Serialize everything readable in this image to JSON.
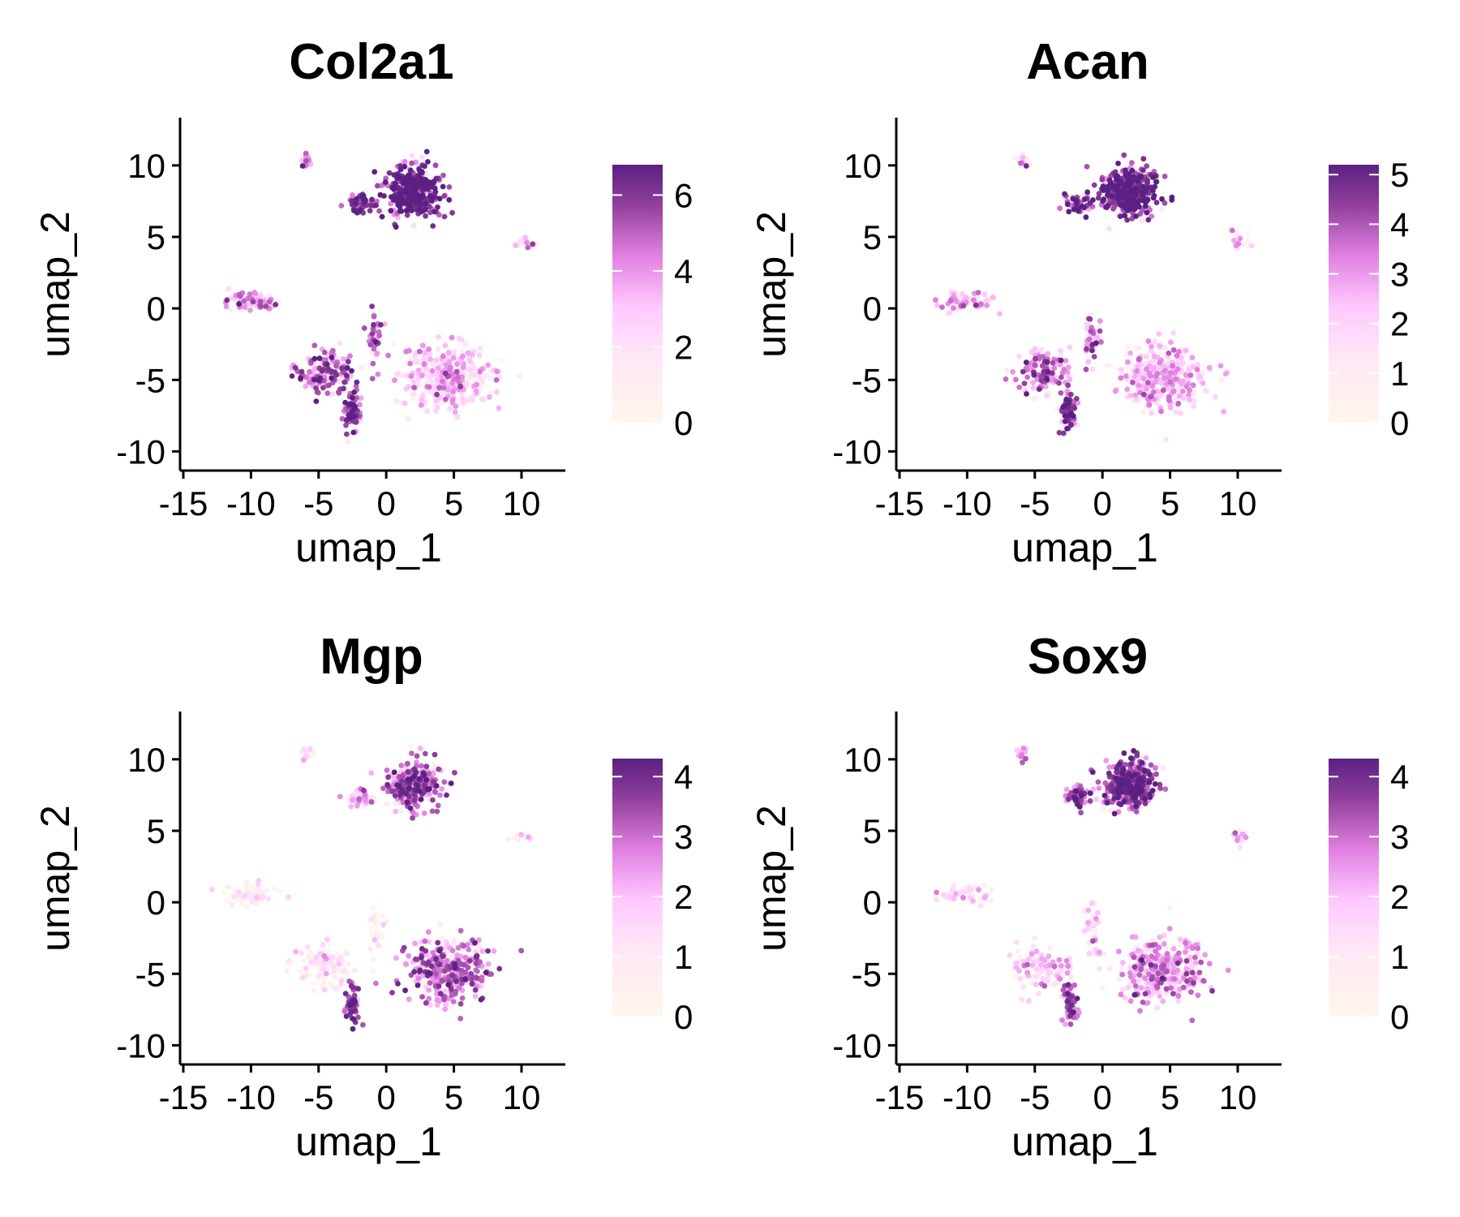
{
  "chart_data": [
    {
      "type": "scatter",
      "title": "Col2a1",
      "xlabel": "umap_1",
      "ylabel": "umap_2",
      "xlim": [
        -15,
        13
      ],
      "ylim": [
        -11,
        13
      ],
      "xticks": [
        "-15",
        "-10",
        "-5",
        "0",
        "5",
        "10"
      ],
      "yticks": [
        "-10",
        "-5",
        "0",
        "5",
        "10"
      ],
      "colorbar": {
        "min": 0,
        "max": 6.8,
        "ticks": [
          "0",
          "2",
          "4",
          "6"
        ],
        "tick_values": [
          0,
          2,
          4,
          6
        ]
      },
      "clusters": [
        {
          "cx": 2.0,
          "cy": 8.2,
          "sx": 1.6,
          "sy": 1.4,
          "n": 420,
          "level": 0.92
        },
        {
          "cx": -1.8,
          "cy": 7.3,
          "sx": 0.8,
          "sy": 0.6,
          "n": 60,
          "level": 0.85
        },
        {
          "cx": -5.9,
          "cy": 10.4,
          "sx": 0.35,
          "sy": 0.45,
          "n": 18,
          "level": 0.45
        },
        {
          "cx": 10.2,
          "cy": 4.6,
          "sx": 0.8,
          "sy": 0.5,
          "n": 14,
          "level": 0.35
        },
        {
          "cx": -10.0,
          "cy": 0.5,
          "sx": 1.6,
          "sy": 0.6,
          "n": 70,
          "level": 0.55
        },
        {
          "cx": -4.5,
          "cy": -4.5,
          "sx": 1.8,
          "sy": 1.3,
          "n": 140,
          "level": 0.7
        },
        {
          "cx": -2.5,
          "cy": -7.2,
          "sx": 0.5,
          "sy": 1.2,
          "n": 80,
          "level": 0.8
        },
        {
          "cx": 4.5,
          "cy": -4.8,
          "sx": 2.6,
          "sy": 1.9,
          "n": 360,
          "level": 0.4
        },
        {
          "cx": -0.8,
          "cy": -2.0,
          "sx": 0.5,
          "sy": 1.6,
          "n": 40,
          "level": 0.7
        }
      ]
    },
    {
      "type": "scatter",
      "title": "Acan",
      "xlabel": "umap_1",
      "ylabel": "umap_2",
      "xlim": [
        -15,
        13
      ],
      "ylim": [
        -11,
        13
      ],
      "xticks": [
        "-15",
        "-10",
        "-5",
        "0",
        "5",
        "10"
      ],
      "yticks": [
        "-10",
        "-5",
        "0",
        "5",
        "10"
      ],
      "colorbar": {
        "min": 0,
        "max": 5.2,
        "ticks": [
          "0",
          "1",
          "2",
          "3",
          "4",
          "5"
        ],
        "tick_values": [
          0,
          1,
          2,
          3,
          4,
          5
        ]
      },
      "clusters": [
        {
          "cx": 2.0,
          "cy": 8.2,
          "sx": 1.6,
          "sy": 1.4,
          "n": 420,
          "level": 0.9
        },
        {
          "cx": -1.8,
          "cy": 7.3,
          "sx": 0.8,
          "sy": 0.6,
          "n": 60,
          "level": 0.85
        },
        {
          "cx": -5.9,
          "cy": 10.4,
          "sx": 0.35,
          "sy": 0.45,
          "n": 18,
          "level": 0.4
        },
        {
          "cx": 10.2,
          "cy": 4.6,
          "sx": 0.8,
          "sy": 0.5,
          "n": 14,
          "level": 0.35
        },
        {
          "cx": -10.0,
          "cy": 0.5,
          "sx": 1.6,
          "sy": 0.6,
          "n": 70,
          "level": 0.5
        },
        {
          "cx": -4.5,
          "cy": -4.5,
          "sx": 1.8,
          "sy": 1.3,
          "n": 140,
          "level": 0.65
        },
        {
          "cx": -2.5,
          "cy": -7.2,
          "sx": 0.5,
          "sy": 1.2,
          "n": 80,
          "level": 0.8
        },
        {
          "cx": 4.5,
          "cy": -4.8,
          "sx": 2.6,
          "sy": 1.9,
          "n": 360,
          "level": 0.45
        },
        {
          "cx": -0.8,
          "cy": -2.0,
          "sx": 0.5,
          "sy": 1.6,
          "n": 40,
          "level": 0.6
        }
      ]
    },
    {
      "type": "scatter",
      "title": "Mgp",
      "xlabel": "umap_1",
      "ylabel": "umap_2",
      "xlim": [
        -15,
        13
      ],
      "ylim": [
        -11,
        13
      ],
      "xticks": [
        "-15",
        "-10",
        "-5",
        "0",
        "5",
        "10"
      ],
      "yticks": [
        "-10",
        "-5",
        "0",
        "5",
        "10"
      ],
      "colorbar": {
        "min": 0,
        "max": 4.3,
        "ticks": [
          "0",
          "1",
          "2",
          "3",
          "4"
        ],
        "tick_values": [
          0,
          1,
          2,
          3,
          4
        ]
      },
      "clusters": [
        {
          "cx": 2.0,
          "cy": 8.2,
          "sx": 1.6,
          "sy": 1.4,
          "n": 300,
          "level": 0.7
        },
        {
          "cx": -1.8,
          "cy": 7.3,
          "sx": 0.8,
          "sy": 0.6,
          "n": 40,
          "level": 0.55
        },
        {
          "cx": -5.9,
          "cy": 10.4,
          "sx": 0.35,
          "sy": 0.45,
          "n": 14,
          "level": 0.3
        },
        {
          "cx": 10.2,
          "cy": 4.6,
          "sx": 0.8,
          "sy": 0.5,
          "n": 10,
          "level": 0.1
        },
        {
          "cx": -10.0,
          "cy": 0.5,
          "sx": 1.6,
          "sy": 0.6,
          "n": 60,
          "level": 0.15
        },
        {
          "cx": -4.5,
          "cy": -4.5,
          "sx": 1.8,
          "sy": 1.3,
          "n": 110,
          "level": 0.2
        },
        {
          "cx": -2.5,
          "cy": -7.2,
          "sx": 0.5,
          "sy": 1.2,
          "n": 60,
          "level": 0.75
        },
        {
          "cx": 4.5,
          "cy": -4.8,
          "sx": 2.6,
          "sy": 1.9,
          "n": 340,
          "level": 0.65
        },
        {
          "cx": -0.8,
          "cy": -2.0,
          "sx": 0.5,
          "sy": 1.6,
          "n": 30,
          "level": 0.15
        }
      ]
    },
    {
      "type": "scatter",
      "title": "Sox9",
      "xlabel": "umap_1",
      "ylabel": "umap_2",
      "xlim": [
        -15,
        13
      ],
      "ylim": [
        -11,
        13
      ],
      "xticks": [
        "-15",
        "-10",
        "-5",
        "0",
        "5",
        "10"
      ],
      "yticks": [
        "-10",
        "-5",
        "0",
        "5",
        "10"
      ],
      "colorbar": {
        "min": 0,
        "max": 4.3,
        "ticks": [
          "0",
          "1",
          "2",
          "3",
          "4"
        ],
        "tick_values": [
          0,
          1,
          2,
          3,
          4
        ]
      },
      "clusters": [
        {
          "cx": 2.0,
          "cy": 8.2,
          "sx": 1.6,
          "sy": 1.4,
          "n": 400,
          "level": 0.8
        },
        {
          "cx": -1.8,
          "cy": 7.3,
          "sx": 0.8,
          "sy": 0.6,
          "n": 55,
          "level": 0.75
        },
        {
          "cx": -5.9,
          "cy": 10.4,
          "sx": 0.35,
          "sy": 0.45,
          "n": 16,
          "level": 0.5
        },
        {
          "cx": 10.2,
          "cy": 4.6,
          "sx": 0.8,
          "sy": 0.5,
          "n": 12,
          "level": 0.45
        },
        {
          "cx": -10.0,
          "cy": 0.5,
          "sx": 1.6,
          "sy": 0.6,
          "n": 60,
          "level": 0.3
        },
        {
          "cx": -4.5,
          "cy": -4.5,
          "sx": 1.8,
          "sy": 1.3,
          "n": 120,
          "level": 0.35
        },
        {
          "cx": -2.5,
          "cy": -7.2,
          "sx": 0.5,
          "sy": 1.2,
          "n": 70,
          "level": 0.7
        },
        {
          "cx": 4.5,
          "cy": -4.8,
          "sx": 2.6,
          "sy": 1.9,
          "n": 330,
          "level": 0.55
        },
        {
          "cx": -0.8,
          "cy": -2.0,
          "sx": 0.5,
          "sy": 1.6,
          "n": 35,
          "level": 0.35
        }
      ]
    }
  ],
  "colors": {
    "low": "#fff6ec",
    "mid_low": "#ffd5ff",
    "mid": "#e07fe0",
    "mid_high": "#b14fb7",
    "high": "#5b2083"
  }
}
